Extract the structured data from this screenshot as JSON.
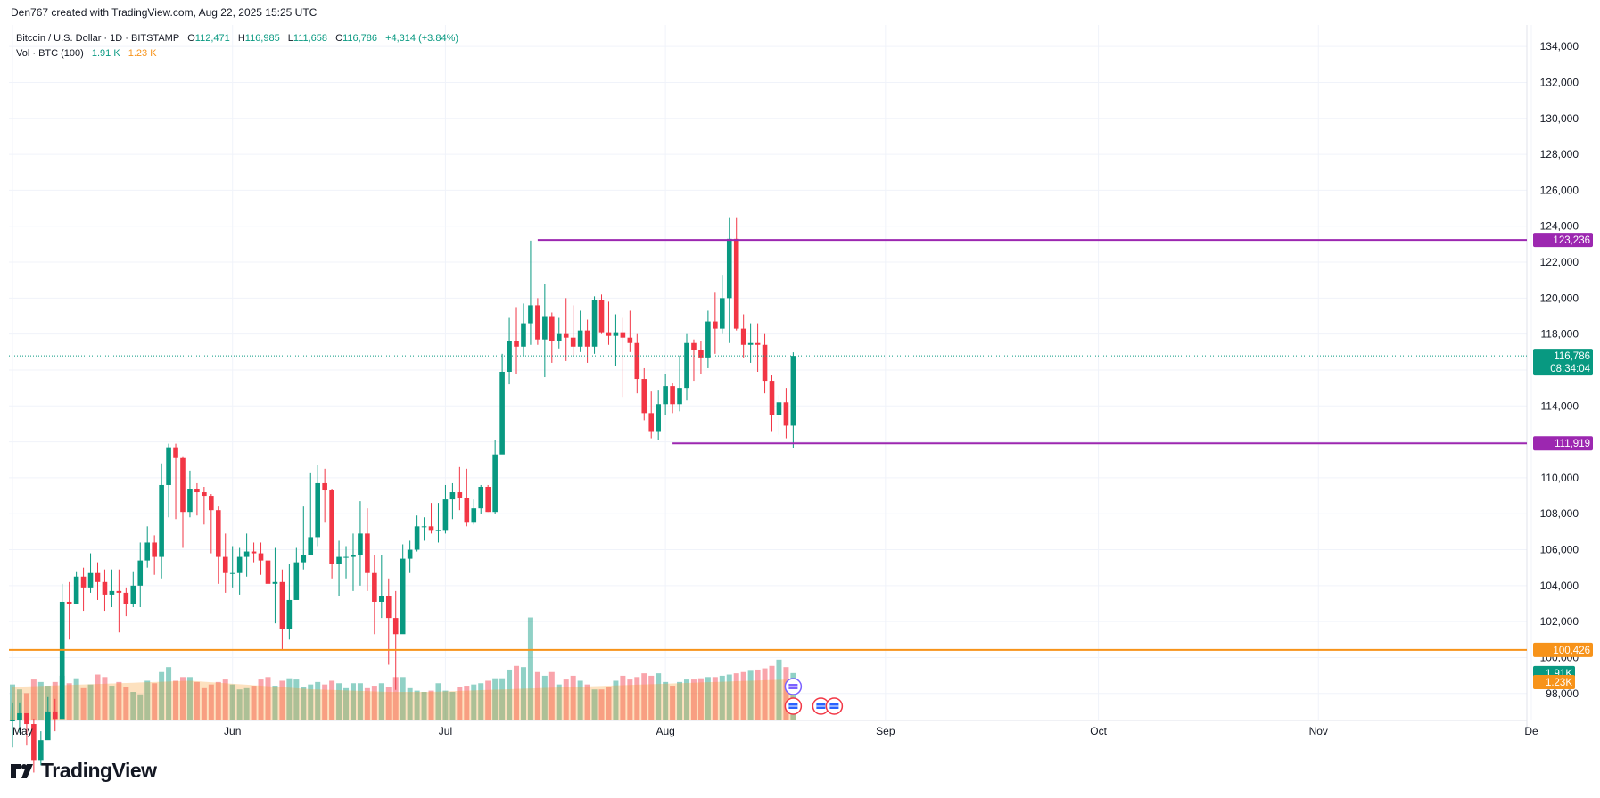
{
  "credit": "Den767 created with TradingView.com, Aug 22, 2025 15:25 UTC",
  "legend": {
    "symbol": "Bitcoin / U.S. Dollar · 1D · BITSTAMP",
    "o_label": "O",
    "o_value": "112,471",
    "h_label": "H",
    "h_value": "116,985",
    "l_label": "L",
    "l_value": "111,658",
    "c_label": "C",
    "c_value": "116,786",
    "change": "+4,314 (+3.84%)",
    "vol_label": "Vol · BTC (100)",
    "vol_value": "1.91 K",
    "vol_ma_value": "1.23 K"
  },
  "brand": {
    "name": "TradingView",
    "icon": "tradingview-logo-icon"
  },
  "colors": {
    "up": "#089981",
    "down": "#f23645",
    "level": "#9c27b0",
    "support": "#f7931a",
    "grid": "#f0f3fa",
    "text": "#131722"
  },
  "price_tags": {
    "level_high": "123,236",
    "last_price": "116,786",
    "countdown": "08:34:04",
    "level_low": "111,919",
    "support": "100,426",
    "vol_tag": "1.91K",
    "vol_ma_tag": "1.23K"
  },
  "chart_data": {
    "type": "candlestick",
    "symbol": "BTCUSD",
    "interval": "1D",
    "ylim": [
      96500,
      135200
    ],
    "y_ticks": [
      134000,
      132000,
      130000,
      128000,
      126000,
      124000,
      122000,
      120000,
      118000,
      116000,
      114000,
      112000,
      110000,
      108000,
      106000,
      104000,
      102000,
      100000,
      98000
    ],
    "y_tick_labels": [
      "134,000",
      "132,000",
      "130,000",
      "128,000",
      "126,000",
      "124,000",
      "122,000",
      "120,000",
      "118,000",
      "116,000",
      "114,000",
      "112,000",
      "110,000",
      "108,000",
      "106,000",
      "104,000",
      "102,000",
      "100,000",
      "98,000"
    ],
    "x_ticks": [
      {
        "label": "May",
        "date": "2025-05-01"
      },
      {
        "label": "Jun",
        "date": "2025-06-01"
      },
      {
        "label": "Jul",
        "date": "2025-07-01"
      },
      {
        "label": "Aug",
        "date": "2025-08-01"
      },
      {
        "label": "Sep",
        "date": "2025-09-01"
      },
      {
        "label": "Oct",
        "date": "2025-10-01"
      },
      {
        "label": "Nov",
        "date": "2025-11-01"
      },
      {
        "label": "De",
        "date": "2025-12-01"
      }
    ],
    "start_date": "2025-05-01",
    "close": [
      96500,
      96900,
      96300,
      94300,
      95400,
      97000,
      96600,
      103100,
      103000,
      104500,
      103900,
      104700,
      104200,
      103500,
      103700,
      103600,
      103000,
      104000,
      105400,
      106400,
      105600,
      109600,
      111700,
      111100,
      108100,
      109400,
      109200,
      109000,
      108200,
      105600,
      104700,
      104700,
      105600,
      105900,
      105800,
      105400,
      104100,
      104200,
      101600,
      103200,
      105300,
      105700,
      106700,
      109700,
      109300,
      105200,
      105600,
      105600,
      105700,
      106900,
      104700,
      103100,
      103400,
      102200,
      101300,
      105500,
      106000,
      107300,
      107300,
      107100,
      107100,
      108800,
      109200,
      108900,
      107500,
      108300,
      109500,
      108100,
      111300,
      115900,
      117600,
      117300,
      118600,
      119600,
      117700,
      119000,
      117600,
      118000,
      117800,
      117300,
      118200,
      117300,
      119900,
      118100,
      117900,
      118100,
      117800,
      117500,
      115500,
      113600,
      112600,
      114100,
      115100,
      114100,
      115000,
      117500,
      117100,
      116700,
      118700,
      118300,
      120000,
      123300,
      118300,
      117400,
      117500,
      117400,
      115400,
      113500,
      114200,
      112900,
      116786
    ],
    "high": [
      97500,
      97500,
      96900,
      96600,
      95900,
      97800,
      97700,
      104100,
      104200,
      104800,
      105000,
      105800,
      105300,
      104900,
      104900,
      104900,
      103900,
      104800,
      106400,
      107300,
      106800,
      110800,
      111900,
      111900,
      111200,
      110400,
      109700,
      109500,
      109100,
      108400,
      106900,
      106200,
      106100,
      106900,
      106400,
      106400,
      106100,
      106100,
      104900,
      105200,
      106100,
      108400,
      110300,
      110700,
      110500,
      109400,
      106500,
      106200,
      106900,
      108700,
      108300,
      105700,
      105700,
      104400,
      103700,
      106300,
      106500,
      107900,
      107800,
      108600,
      108600,
      109600,
      109700,
      110600,
      110500,
      108800,
      109600,
      109600,
      112100,
      116900,
      118900,
      119500,
      119700,
      123200,
      120000,
      120800,
      119200,
      118900,
      120000,
      119600,
      119300,
      118800,
      120100,
      120200,
      119800,
      119100,
      118900,
      119300,
      118000,
      116100,
      114800,
      114900,
      115800,
      115300,
      116800,
      118000,
      117700,
      117600,
      119300,
      120300,
      121300,
      124500,
      124500,
      119100,
      118600,
      118600,
      118000,
      115700,
      114600,
      115000,
      116985
    ],
    "low": [
      95000,
      95800,
      95100,
      93600,
      94000,
      95900,
      95900,
      96900,
      101000,
      103000,
      102600,
      103600,
      103200,
      102600,
      102800,
      101400,
      102300,
      102800,
      102800,
      105000,
      104600,
      104400,
      107800,
      107700,
      106100,
      107800,
      107900,
      107400,
      105800,
      104100,
      103600,
      103900,
      103500,
      104500,
      105300,
      104600,
      104100,
      101900,
      100400,
      101000,
      104700,
      104900,
      105800,
      106200,
      107500,
      104400,
      103400,
      104400,
      103700,
      104000,
      103700,
      101300,
      102200,
      99600,
      98200,
      101500,
      104700,
      105900,
      106500,
      106900,
      106400,
      106900,
      107700,
      108200,
      107300,
      107400,
      108000,
      108100,
      108000,
      111500,
      115200,
      115800,
      116800,
      117400,
      117400,
      115600,
      116400,
      117200,
      116500,
      116800,
      117000,
      116400,
      116900,
      118000,
      117400,
      116200,
      114500,
      117000,
      114700,
      113200,
      112200,
      112100,
      113500,
      113600,
      113700,
      114300,
      115400,
      115800,
      116100,
      116900,
      118000,
      117500,
      118200,
      116700,
      116400,
      115900,
      114700,
      112600,
      112400,
      112200,
      111658
    ],
    "volume": [
      1.45,
      1.25,
      1.1,
      1.65,
      1.55,
      1.4,
      1.55,
      1.8,
      1.5,
      1.7,
      1.3,
      1.45,
      1.85,
      1.75,
      1.4,
      1.55,
      1.35,
      1.15,
      1.05,
      1.6,
      1.5,
      1.95,
      2.15,
      1.6,
      1.75,
      1.75,
      1.55,
      1.3,
      1.45,
      1.55,
      1.65,
      1.45,
      1.25,
      1.3,
      1.4,
      1.65,
      1.75,
      1.4,
      1.6,
      1.7,
      1.65,
      1.35,
      1.45,
      1.55,
      1.45,
      1.6,
      1.5,
      1.3,
      1.5,
      1.5,
      1.3,
      1.4,
      1.5,
      1.35,
      1.75,
      1.75,
      1.3,
      1.2,
      1.15,
      1.2,
      1.5,
      1.2,
      1.15,
      1.35,
      1.4,
      1.45,
      1.5,
      1.6,
      1.7,
      1.7,
      2.05,
      2.2,
      2.15,
      4.15,
      1.95,
      1.8,
      1.95,
      1.45,
      1.65,
      1.8,
      1.6,
      1.45,
      1.25,
      1.25,
      1.35,
      1.6,
      1.8,
      1.65,
      1.75,
      1.9,
      1.8,
      1.9,
      1.55,
      1.4,
      1.55,
      1.65,
      1.65,
      1.7,
      1.75,
      1.75,
      1.8,
      1.85,
      1.9,
      1.95,
      2.0,
      2.05,
      2.1,
      2.2,
      2.45,
      2.15,
      1.91
    ],
    "volume_ma": [
      1.35,
      1.36,
      1.37,
      1.38,
      1.39,
      1.4,
      1.41,
      1.42,
      1.43,
      1.44,
      1.45,
      1.46,
      1.47,
      1.48,
      1.49,
      1.5,
      1.51,
      1.52,
      1.53,
      1.54,
      1.55,
      1.56,
      1.57,
      1.58,
      1.59,
      1.6,
      1.58,
      1.56,
      1.54,
      1.52,
      1.5,
      1.48,
      1.46,
      1.44,
      1.42,
      1.4,
      1.38,
      1.36,
      1.34,
      1.32,
      1.3,
      1.28,
      1.26,
      1.25,
      1.24,
      1.23,
      1.22,
      1.21,
      1.2,
      1.19,
      1.18,
      1.17,
      1.16,
      1.15,
      1.15,
      1.15,
      1.15,
      1.15,
      1.15,
      1.15,
      1.16,
      1.17,
      1.18,
      1.19,
      1.2,
      1.21,
      1.22,
      1.23,
      1.24,
      1.25,
      1.26,
      1.27,
      1.28,
      1.29,
      1.3,
      1.31,
      1.32,
      1.33,
      1.34,
      1.35,
      1.36,
      1.37,
      1.38,
      1.39,
      1.4,
      1.41,
      1.42,
      1.43,
      1.44,
      1.45,
      1.46,
      1.47,
      1.48,
      1.49,
      1.5,
      1.51,
      1.52,
      1.53,
      1.54,
      1.55,
      1.56,
      1.57,
      1.58,
      1.59,
      1.6,
      1.61,
      1.62,
      1.63,
      1.64,
      1.65,
      1.23
    ],
    "horizontal_levels": [
      {
        "price": 123236,
        "from_date": "2025-07-14",
        "label": "123,236"
      },
      {
        "price": 111919,
        "from_date": "2025-08-02",
        "label": "111,919"
      },
      {
        "price": 100426,
        "from_date": "2025-05-01",
        "label": "100,426"
      }
    ],
    "last_price": 116786,
    "grid": true,
    "xlabel": "",
    "ylabel": ""
  }
}
